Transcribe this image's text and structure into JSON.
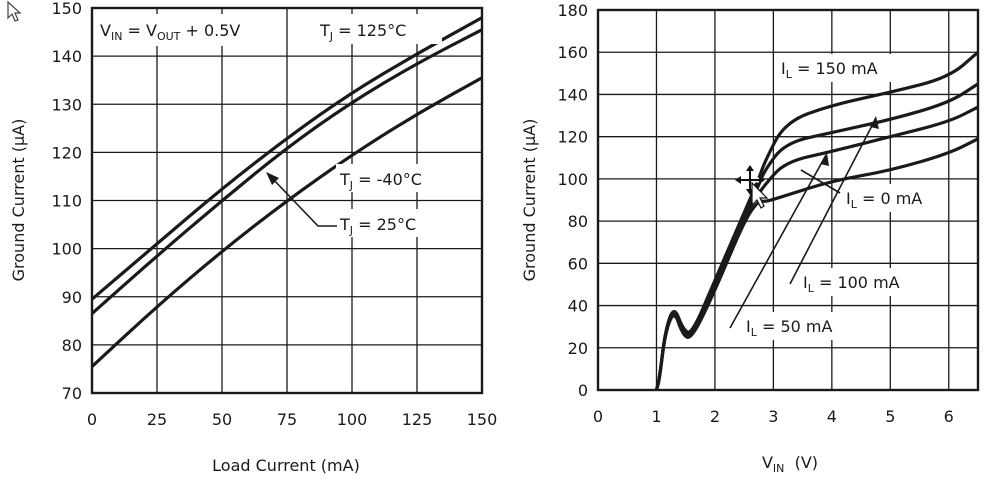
{
  "chart_data": [
    {
      "type": "line",
      "xlabel": "Load Current (mA)",
      "ylabel": "Ground Current (µA)",
      "xlim": [
        0,
        150
      ],
      "ylim": [
        70,
        150
      ],
      "xticks": [
        "0",
        "25",
        "50",
        "75",
        "100",
        "125",
        "150"
      ],
      "yticks": [
        "70",
        "80",
        "90",
        "100",
        "110",
        "120",
        "130",
        "140",
        "150"
      ],
      "grid": true,
      "condition": {
        "main": "V",
        "sub1": "IN",
        "mid": " = V",
        "sub2": "OUT",
        "tail": " + 0.5V"
      },
      "series": [
        {
          "label": {
            "main": "T",
            "sub": "J",
            "tail": " = 125°C"
          },
          "x": [
            0,
            25,
            50,
            75,
            100,
            125,
            150
          ],
          "y": [
            89.5,
            101,
            112.5,
            123,
            132.5,
            140.5,
            148
          ]
        },
        {
          "label": {
            "main": "T",
            "sub": "J",
            "tail": " = 25°C"
          },
          "x": [
            0,
            25,
            50,
            75,
            100,
            125,
            150
          ],
          "y": [
            86.5,
            98.5,
            110,
            121,
            130.5,
            138.5,
            145.5
          ]
        },
        {
          "label": {
            "main": "T",
            "sub": "J",
            "tail": " = -40°C"
          },
          "x": [
            0,
            25,
            50,
            75,
            100,
            125,
            150
          ],
          "y": [
            75.5,
            88,
            99.5,
            110,
            119.5,
            128,
            135.5
          ]
        }
      ]
    },
    {
      "type": "line",
      "xlabel": {
        "main": "V",
        "sub": "IN",
        "tail": "  (V)"
      },
      "ylabel": "Ground Current (µA)",
      "xlim": [
        0,
        6.5
      ],
      "ylim": [
        0,
        180
      ],
      "xticks": [
        "0",
        "1",
        "2",
        "3",
        "4",
        "5",
        "6"
      ],
      "yticks": [
        "0",
        "20",
        "40",
        "60",
        "80",
        "100",
        "120",
        "140",
        "160",
        "180"
      ],
      "grid": true,
      "series": [
        {
          "label": {
            "main": "I",
            "sub": "L",
            "tail": " = 150 mA"
          },
          "x": [
            1.0,
            1.05,
            1.15,
            1.3,
            1.45,
            1.6,
            2.0,
            2.5,
            2.75,
            2.85,
            3.2,
            4.0,
            5.0,
            6.0,
            6.5
          ],
          "y": [
            0,
            5,
            28,
            40,
            29,
            26,
            52,
            84,
            100,
            108,
            127,
            135,
            141,
            148,
            160
          ]
        },
        {
          "label": {
            "main": "I",
            "sub": "L",
            "tail": " = 100 mA"
          },
          "x": [
            1.0,
            1.05,
            1.15,
            1.3,
            1.45,
            1.6,
            2.0,
            2.5,
            2.75,
            2.85,
            3.2,
            4.0,
            5.0,
            6.0,
            6.5
          ],
          "y": [
            0,
            5,
            28,
            40,
            28,
            25,
            50,
            83,
            97,
            104,
            117,
            122,
            128,
            136,
            145
          ]
        },
        {
          "label": {
            "main": "I",
            "sub": "L",
            "tail": " = 50 mA"
          },
          "x": [
            1.0,
            1.05,
            1.15,
            1.3,
            1.45,
            1.6,
            2.0,
            2.5,
            2.75,
            2.85,
            3.2,
            4.0,
            5.0,
            6.0,
            6.5
          ],
          "y": [
            0,
            5,
            28,
            39,
            27,
            24,
            48,
            82,
            93,
            97,
            108,
            113,
            120,
            127,
            134
          ]
        },
        {
          "label": {
            "main": "I",
            "sub": "L",
            "tail": " = 0 mA"
          },
          "x": [
            1.0,
            1.05,
            1.15,
            1.3,
            1.45,
            1.6,
            2.0,
            2.5,
            2.75,
            2.85,
            3.2,
            4.0,
            5.0,
            6.0,
            6.5
          ],
          "y": [
            0,
            5,
            27,
            38,
            26,
            24,
            47,
            80,
            90,
            89,
            92,
            99,
            104,
            112,
            119
          ]
        }
      ]
    }
  ]
}
